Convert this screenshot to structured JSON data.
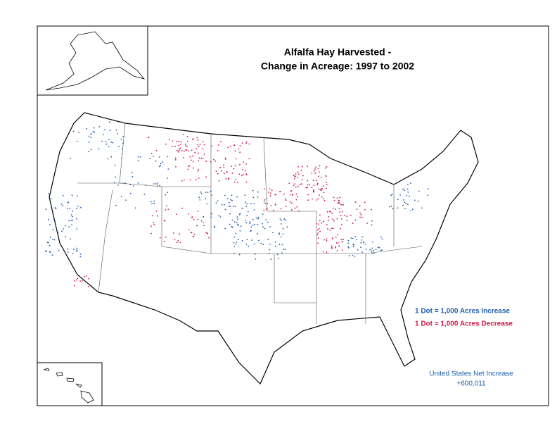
{
  "title": [
    "Alfalfa Hay Harvested -",
    "Change in Acreage:  1997 to 2002"
  ],
  "legend": [
    "1 Dot = 1,000 Acres Increase",
    "1 Dot = 1,000 Acres Decrease"
  ],
  "note": [
    "United States Net Increase",
    "+600,011"
  ]
}
